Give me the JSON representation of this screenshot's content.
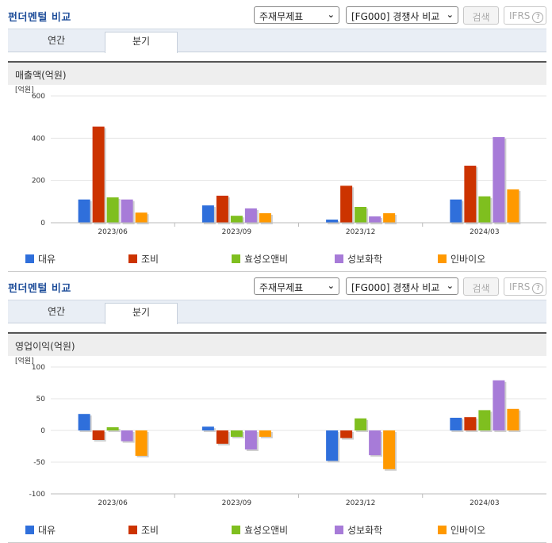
{
  "panels": [
    {
      "title": "펀더멘털 비교",
      "statement_select": "주재무제표",
      "peer_select": "[FG000] 경쟁사 비교",
      "search_label": "검색",
      "ifrs_label": "IFRS",
      "help_label": "?",
      "tabs": [
        "연간",
        "분기"
      ],
      "active_tab": "분기",
      "section_title": "매출액(억원)"
    },
    {
      "title": "펀더멘털 비교",
      "statement_select": "주재무제표",
      "peer_select": "[FG000] 경쟁사 비교",
      "search_label": "검색",
      "ifrs_label": "IFRS",
      "help_label": "?",
      "tabs": [
        "연간",
        "분기"
      ],
      "active_tab": "분기",
      "section_title": "영업이익(억원)"
    }
  ],
  "chart_data": [
    {
      "type": "bar",
      "unit_label": "[억원]",
      "categories": [
        "2023/06",
        "2023/09",
        "2023/12",
        "2024/03"
      ],
      "ylim": [
        0,
        600
      ],
      "yticks": [
        0,
        200,
        400,
        600
      ],
      "grid": true,
      "legend_position": "bottom",
      "series": [
        {
          "name": "대유",
          "color": "#2f6fdb",
          "values": [
            110,
            82,
            15,
            110
          ]
        },
        {
          "name": "조비",
          "color": "#cc3300",
          "values": [
            455,
            128,
            175,
            270
          ]
        },
        {
          "name": "효성오앤비",
          "color": "#7fbf1f",
          "values": [
            120,
            33,
            75,
            125
          ]
        },
        {
          "name": "성보화학",
          "color": "#a77bd8",
          "values": [
            110,
            68,
            30,
            405
          ]
        },
        {
          "name": "인바이오",
          "color": "#ff9900",
          "values": [
            48,
            45,
            45,
            158
          ]
        }
      ]
    },
    {
      "type": "bar",
      "unit_label": "[억원]",
      "categories": [
        "2023/06",
        "2023/09",
        "2023/12",
        "2024/03"
      ],
      "ylim": [
        -100,
        100
      ],
      "yticks": [
        -100,
        -50,
        0,
        50,
        100
      ],
      "grid": true,
      "legend_position": "bottom",
      "series": [
        {
          "name": "대유",
          "color": "#2f6fdb",
          "values": [
            26,
            6,
            -48,
            20
          ]
        },
        {
          "name": "조비",
          "color": "#cc3300",
          "values": [
            -15,
            -21,
            -12,
            21
          ]
        },
        {
          "name": "효성오앤비",
          "color": "#7fbf1f",
          "values": [
            5,
            -10,
            19,
            32
          ]
        },
        {
          "name": "성보화학",
          "color": "#a77bd8",
          "values": [
            -17,
            -30,
            -39,
            79
          ]
        },
        {
          "name": "인바이오",
          "color": "#ff9900",
          "values": [
            -40,
            -10,
            -61,
            34
          ]
        }
      ]
    }
  ]
}
